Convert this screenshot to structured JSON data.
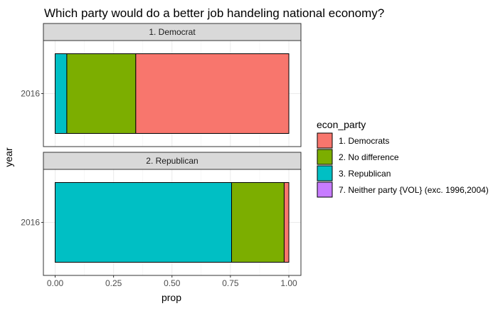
{
  "chart_data": {
    "type": "bar",
    "orientation": "horizontal",
    "stacked": true,
    "title": "Which party would do a better job handeling national economy?",
    "xlabel": "prop",
    "ylabel": "year",
    "xlim": [
      0,
      1
    ],
    "x_ticks": [
      "0.00",
      "0.25",
      "0.50",
      "0.75",
      "1.00"
    ],
    "grid": true,
    "legend": {
      "title": "econ_party",
      "position": "right",
      "entries": [
        {
          "label": "1. Democrats",
          "color": "#F8766D"
        },
        {
          "label": "2. No difference",
          "color": "#7CAE00"
        },
        {
          "label": "3. Republican",
          "color": "#00BFC4"
        },
        {
          "label": "7. Neither party {VOL} (exc. 1996,2004)",
          "color": "#C77CFF"
        }
      ]
    },
    "panels": [
      {
        "strip": "1. Democrat",
        "category": "2016",
        "segments": [
          {
            "series": "3. Republican",
            "value": 0.05
          },
          {
            "series": "2. No difference",
            "value": 0.295
          },
          {
            "series": "1. Democrats",
            "value": 0.655
          }
        ]
      },
      {
        "strip": "2. Republican",
        "category": "2016",
        "segments": [
          {
            "series": "3. Republican",
            "value": 0.755
          },
          {
            "series": "2. No difference",
            "value": 0.225
          },
          {
            "series": "1. Democrats",
            "value": 0.02
          }
        ]
      }
    ]
  }
}
